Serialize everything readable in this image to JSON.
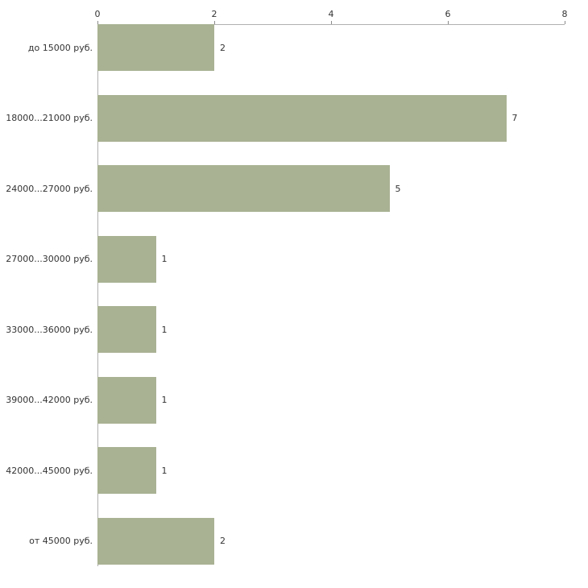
{
  "chart_data": {
    "type": "bar",
    "orientation": "horizontal",
    "title": "",
    "xlabel": "",
    "ylabel": "",
    "categories": [
      "до 15000 руб.",
      "18000...21000 руб.",
      "24000...27000 руб.",
      "27000...30000 руб.",
      "33000...36000 руб.",
      "39000...42000 руб.",
      "42000...45000 руб.",
      "от 45000 руб."
    ],
    "values": [
      2,
      7,
      5,
      1,
      1,
      1,
      1,
      2
    ],
    "xlim": [
      0,
      8
    ],
    "xticks": [
      0,
      2,
      4,
      6,
      8
    ],
    "grid": false,
    "legend": false,
    "bar_color": "#a9b293",
    "axis_color": "#b0b0b0",
    "text_color": "#333333",
    "background_color": "#ffffff"
  }
}
